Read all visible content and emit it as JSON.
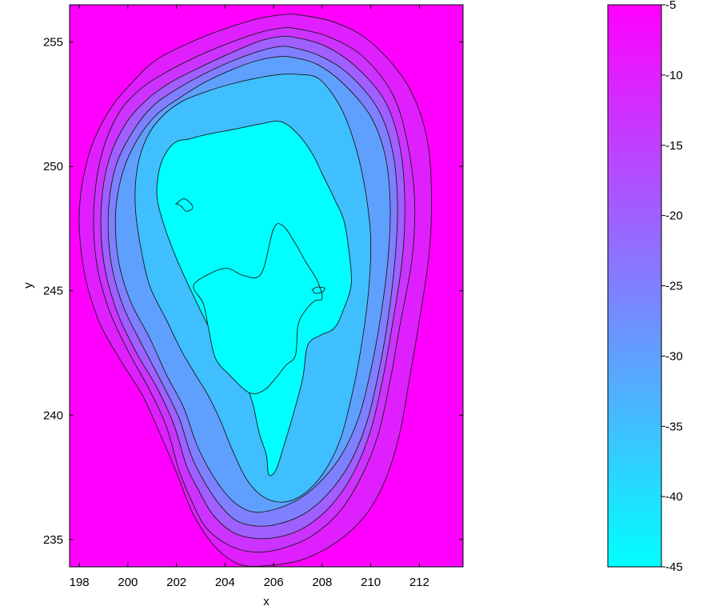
{
  "chart_data": {
    "type": "contour",
    "title": "",
    "xlabel": "x",
    "ylabel": "y",
    "xlim": [
      197.6,
      213.8
    ],
    "ylim": [
      233.9,
      256.5
    ],
    "x_ticks": [
      198,
      200,
      202,
      204,
      206,
      208,
      210,
      212
    ],
    "y_ticks": [
      235,
      240,
      245,
      250,
      255
    ],
    "grid": false,
    "colormap": "cool",
    "colorbar": {
      "range": [
        -45,
        -5
      ],
      "ticks": [
        -5,
        -10,
        -15,
        -20,
        -25,
        -30,
        -35,
        -40,
        -45
      ],
      "placement": "right"
    },
    "contour_levels": [
      -10,
      -15,
      -20,
      -25,
      -30,
      -35,
      -40,
      -45
    ],
    "contours": [
      {
        "level": -10,
        "x": [
          207.0,
          208.5,
          210.0,
          211.5,
          212.3,
          212.5,
          212.4,
          212.0,
          211.6,
          211.2,
          210.6,
          209.8,
          208.6,
          207.2,
          205.8,
          204.6,
          203.6,
          202.7,
          202.0,
          201.3,
          200.6,
          199.7,
          198.8,
          198.2,
          198.0,
          198.4,
          199.2,
          200.2,
          201.2,
          202.6,
          203.9,
          205.4,
          206.4
        ],
        "y": [
          256.1,
          255.8,
          255.0,
          253.3,
          251.2,
          248.8,
          246.5,
          243.8,
          241.5,
          239.3,
          237.4,
          236.0,
          234.9,
          234.2,
          233.95,
          234.0,
          234.7,
          236.0,
          237.7,
          239.3,
          240.8,
          242.2,
          243.8,
          245.8,
          248.2,
          250.5,
          252.2,
          253.4,
          254.3,
          255.0,
          255.5,
          255.95,
          256.1
        ]
      },
      {
        "level": -15,
        "x": [
          206.9,
          208.3,
          209.7,
          210.9,
          211.5,
          211.8,
          211.7,
          211.2,
          210.8,
          210.3,
          209.6,
          208.7,
          207.5,
          206.2,
          205.1,
          204.1,
          203.2,
          202.6,
          202.1,
          201.6,
          200.9,
          200.0,
          199.2,
          198.7,
          198.6,
          198.9,
          199.6,
          200.5,
          201.6,
          202.8,
          204.0,
          205.3,
          206.2
        ],
        "y": [
          255.55,
          255.2,
          254.4,
          252.9,
          251.0,
          248.7,
          246.3,
          243.6,
          241.4,
          239.2,
          237.5,
          236.1,
          235.1,
          234.6,
          234.5,
          234.8,
          235.5,
          236.6,
          237.8,
          239.5,
          241.0,
          242.6,
          244.3,
          246.2,
          248.3,
          250.4,
          252.1,
          253.1,
          253.8,
          254.4,
          254.9,
          255.35,
          255.55
        ]
      },
      {
        "level": -20,
        "x": [
          206.8,
          208.1,
          209.4,
          210.6,
          211.2,
          211.4,
          211.3,
          210.9,
          210.5,
          210.0,
          209.3,
          208.4,
          207.3,
          206.2,
          205.2,
          204.3,
          203.5,
          202.9,
          202.4,
          201.9,
          201.2,
          200.3,
          199.5,
          199.0,
          198.9,
          199.2,
          199.9,
          200.8,
          201.8,
          203.0,
          204.1,
          205.3,
          206.1
        ],
        "y": [
          255.2,
          254.85,
          254.0,
          252.6,
          250.8,
          248.6,
          246.3,
          243.7,
          241.5,
          239.4,
          237.7,
          236.4,
          235.5,
          235.1,
          235.05,
          235.3,
          236.0,
          237.0,
          238.0,
          239.6,
          241.1,
          242.6,
          244.3,
          246.2,
          248.3,
          250.2,
          251.7,
          252.7,
          253.4,
          254.0,
          254.5,
          255.0,
          255.2
        ]
      },
      {
        "level": -25,
        "x": [
          206.7,
          207.9,
          209.1,
          210.3,
          210.9,
          211.1,
          211.0,
          210.7,
          210.3,
          209.8,
          209.1,
          208.2,
          207.2,
          206.1,
          205.2,
          204.4,
          203.7,
          203.1,
          202.6,
          202.1,
          201.4,
          200.6,
          199.8,
          199.3,
          199.2,
          199.5,
          200.2,
          201.0,
          202.0,
          203.1,
          204.2,
          205.3,
          206.1
        ],
        "y": [
          254.8,
          254.45,
          253.7,
          252.3,
          250.6,
          248.5,
          246.3,
          243.8,
          241.6,
          239.6,
          238.0,
          236.8,
          236.0,
          235.6,
          235.55,
          235.8,
          236.5,
          237.4,
          238.4,
          239.9,
          241.3,
          242.8,
          244.4,
          246.2,
          248.2,
          250.0,
          251.4,
          252.4,
          253.1,
          253.7,
          254.2,
          254.6,
          254.8
        ]
      },
      {
        "level": -30,
        "x": [
          206.7,
          207.8,
          208.9,
          210.0,
          210.6,
          210.8,
          210.7,
          210.4,
          210.0,
          209.5,
          208.8,
          207.9,
          207.0,
          206.0,
          205.2,
          204.5,
          203.9,
          203.3,
          202.8,
          202.3,
          201.6,
          200.9,
          200.1,
          199.6,
          199.5,
          199.8,
          200.4,
          201.2,
          202.2,
          203.2,
          204.3,
          205.3,
          206.1
        ],
        "y": [
          254.4,
          254.1,
          253.3,
          252.0,
          250.4,
          248.4,
          246.2,
          243.9,
          241.8,
          239.9,
          238.4,
          237.3,
          236.6,
          236.2,
          236.1,
          236.4,
          237.0,
          237.9,
          238.9,
          240.3,
          241.6,
          243.1,
          244.6,
          246.3,
          248.2,
          249.8,
          251.1,
          252.1,
          252.8,
          253.4,
          253.9,
          254.25,
          254.4
        ]
      },
      {
        "level": -35,
        "x": [
          207.0,
          207.9,
          208.8,
          209.4,
          209.8,
          210.0,
          209.9,
          209.6,
          209.2,
          208.7,
          208.0,
          207.2,
          206.4,
          205.6,
          204.9,
          204.3,
          203.8,
          203.3,
          202.8,
          202.2,
          201.6,
          200.9,
          200.5,
          200.3,
          200.4,
          200.8,
          201.4,
          202.2,
          203.2,
          204.2,
          205.3,
          206.3
        ],
        "y": [
          253.7,
          253.5,
          252.3,
          250.7,
          248.9,
          247.0,
          244.9,
          242.7,
          240.7,
          238.9,
          237.6,
          236.8,
          236.5,
          236.7,
          237.4,
          238.6,
          239.8,
          240.8,
          241.6,
          242.6,
          243.8,
          245.2,
          246.9,
          248.5,
          250.0,
          251.2,
          252.0,
          252.6,
          253.0,
          253.3,
          253.55,
          253.7
        ]
      },
      {
        "level": -40,
        "x": [
          204.4,
          205.4,
          206.3,
          207.0,
          207.6,
          208.0,
          208.5,
          208.9,
          209.1,
          209.2,
          208.9,
          208.5,
          207.9,
          207.4,
          207.2,
          206.8,
          206.4,
          206.1,
          205.8,
          205.7,
          205.4,
          205.1,
          204.6,
          203.9,
          203.3,
          202.6,
          202.0,
          201.5,
          201.2,
          201.3,
          201.6,
          202.0,
          202.5,
          203.3
        ],
        "y": [
          251.5,
          251.7,
          251.8,
          251.3,
          250.5,
          249.7,
          248.7,
          247.8,
          246.6,
          245.3,
          244.3,
          243.5,
          243.2,
          242.8,
          241.5,
          240.0,
          238.7,
          237.8,
          237.6,
          238.4,
          239.3,
          240.6,
          241.7,
          242.5,
          243.6,
          245.0,
          246.3,
          247.6,
          248.8,
          249.9,
          250.6,
          251.0,
          251.1,
          251.3
        ]
      },
      {
        "level": -45,
        "x": [
          206.0,
          206.4,
          206.9,
          207.3,
          207.8,
          208.0,
          207.7,
          207.3,
          207.0,
          206.9,
          206.5,
          206.1,
          205.6,
          205.0,
          204.2,
          203.6,
          203.3,
          203.1,
          202.7,
          203.4,
          204.1,
          204.8,
          205.5
        ],
        "y": [
          247.5,
          247.6,
          246.9,
          246.2,
          245.4,
          244.7,
          244.6,
          244.2,
          243.6,
          242.4,
          242.0,
          241.5,
          241.0,
          240.9,
          241.6,
          242.3,
          243.6,
          244.5,
          245.2,
          245.7,
          245.9,
          245.6,
          245.7
        ]
      }
    ],
    "small_contours": [
      {
        "level": -40,
        "x": [
          202.0,
          202.3,
          202.6,
          202.65,
          202.4,
          202.2,
          202.0
        ],
        "y": [
          248.5,
          248.7,
          248.5,
          248.3,
          248.2,
          248.4,
          248.5
        ]
      },
      {
        "level": -40,
        "x": [
          207.6,
          207.8,
          208.1,
          208.0,
          207.7,
          207.6
        ],
        "y": [
          245.05,
          245.15,
          245.1,
          244.95,
          244.9,
          245.05
        ]
      }
    ],
    "level_fills": {
      "-10": "#ff00ff",
      "-15": "#e01fff",
      "-20": "#cc33ff",
      "-25": "#a05fff",
      "-30": "#7f80ff",
      "-35": "#5fa0ff",
      "-40": "#40bfff",
      "-45": "#00ffff"
    },
    "colorbar_colors": [
      "#00ffff",
      "#ff00ff"
    ]
  }
}
